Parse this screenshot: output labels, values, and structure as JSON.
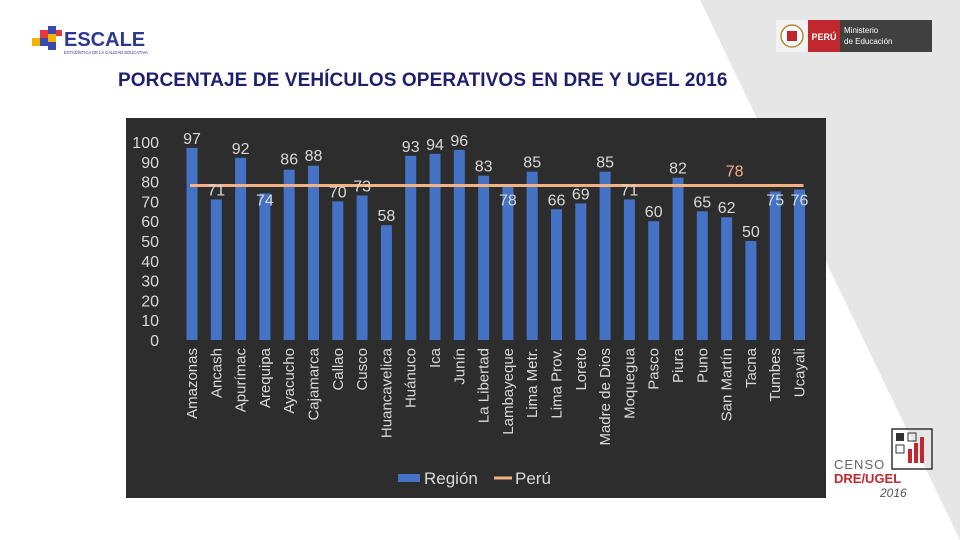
{
  "header": {
    "escale_brand": "ESCALE",
    "escale_tagline": "ESTADÍSTICA DE LA CALIDAD EDUCATIVA",
    "peru_label": "PERÚ",
    "ministry_line1": "Ministerio",
    "ministry_line2": "de Educación"
  },
  "title": "PORCENTAJE DE VEHÍCULOS OPERATIVOS EN DRE Y UGEL 2016",
  "censo": {
    "line1": "CENSO",
    "line2": "DRE/UGEL",
    "line3": "2016"
  },
  "colors": {
    "bar": "#4472c4",
    "line": "#f4b183",
    "chart_bg": "#2d2d2d",
    "title": "#1f1f6b",
    "accent": "#c0282d"
  },
  "chart_data": {
    "type": "bar",
    "title": "",
    "categories": [
      "Amazonas",
      "Ancash",
      "Apurímac",
      "Arequipa",
      "Ayacucho",
      "Cajamarca",
      "Callao",
      "Cusco",
      "Huancavelica",
      "Huánuco",
      "Ica",
      "Junín",
      "La Libertad",
      "Lambayeque",
      "Lima Metr.",
      "Lima Prov.",
      "Loreto",
      "Madre de Dios",
      "Moquegua",
      "Pasco",
      "Piura",
      "Puno",
      "San Martín",
      "Tacna",
      "Tumbes",
      "Ucayali"
    ],
    "series": [
      {
        "name": "Región",
        "type": "bar",
        "values": [
          97,
          71,
          92,
          74,
          86,
          88,
          70,
          73,
          58,
          93,
          94,
          96,
          83,
          78,
          85,
          66,
          69,
          85,
          71,
          60,
          82,
          65,
          62,
          50,
          75,
          76
        ]
      },
      {
        "name": "Perú",
        "type": "line",
        "value": 78
      }
    ],
    "ylim": [
      0,
      100
    ],
    "yticks": [
      0,
      10,
      20,
      30,
      40,
      50,
      60,
      70,
      80,
      90,
      100
    ],
    "reference_label": "78",
    "legend": [
      "Región",
      "Perú"
    ],
    "legend_position": "bottom"
  }
}
